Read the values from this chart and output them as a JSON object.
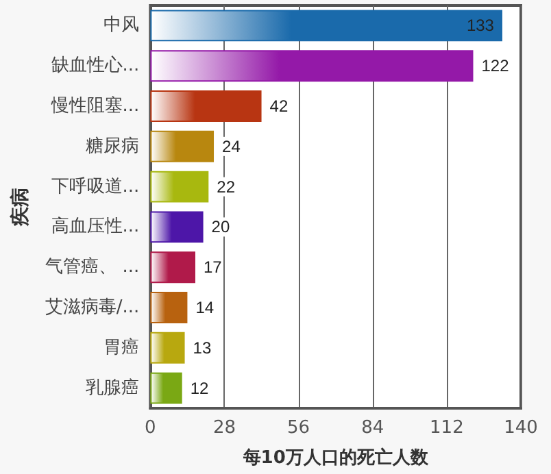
{
  "chart_data": {
    "type": "bar",
    "orientation": "horizontal",
    "xlabel": "每10万人口的死亡人数",
    "ylabel": "疾病",
    "categories": [
      "中风",
      "缺血性心...",
      "慢性阻塞...",
      "糖尿病",
      "下呼吸道...",
      "高血压性...",
      "气管癌、 ...",
      "艾滋病毒/...",
      "胃癌",
      "乳腺癌"
    ],
    "values": [
      133,
      122,
      42,
      24,
      22,
      20,
      17,
      14,
      13,
      12
    ],
    "colors": [
      "#1a6aab",
      "#9419a8",
      "#b83512",
      "#b8870f",
      "#a8b80f",
      "#4d16a8",
      "#b01a4a",
      "#b8620f",
      "#b8a80f",
      "#7aa814"
    ],
    "xlim": [
      0,
      140
    ],
    "xticks": [
      0,
      28,
      56,
      84,
      112,
      140
    ],
    "grid": "x",
    "data_labels": true
  }
}
